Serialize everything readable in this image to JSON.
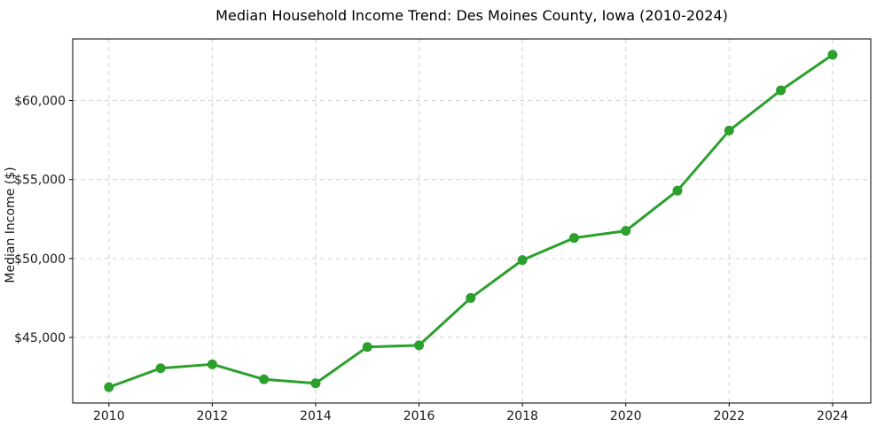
{
  "chart_data": {
    "type": "line",
    "title": "Median Household Income Trend: Des Moines County, Iowa (2010-2024)",
    "xlabel": "",
    "ylabel": "Median Income ($)",
    "x": [
      2010,
      2011,
      2012,
      2013,
      2014,
      2015,
      2016,
      2017,
      2018,
      2019,
      2020,
      2021,
      2022,
      2023,
      2024
    ],
    "series": [
      {
        "name": "Median Household Income",
        "values": [
          41850,
          43050,
          43300,
          42350,
          42100,
          44400,
          44500,
          47500,
          49900,
          51300,
          51750,
          54300,
          58100,
          60650,
          62900
        ]
      }
    ],
    "xticks": [
      2010,
      2012,
      2014,
      2016,
      2018,
      2020,
      2022,
      2024
    ],
    "yticks": [
      45000,
      50000,
      55000,
      60000
    ],
    "ytick_labels": [
      "$45,000",
      "$50,000",
      "$55,000",
      "$60,000"
    ],
    "xlim": [
      2009.3,
      2024.74
    ],
    "ylim": [
      40850,
      63900
    ],
    "grid": true,
    "legend": "none",
    "line_color": "#2ca02c",
    "marker_color": "#2ca02c",
    "marker": "circle",
    "background_color": "#ffffff"
  }
}
